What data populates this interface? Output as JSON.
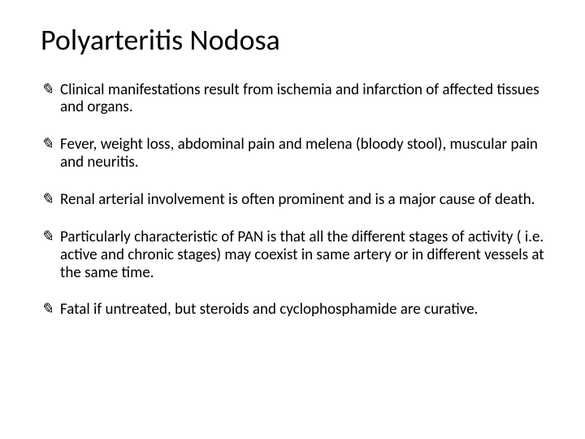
{
  "slide": {
    "title": "Polyarteritis Nodosa",
    "title_fontsize": 36,
    "title_color": "#000000",
    "body_fontsize": 19,
    "body_color": "#000000",
    "background_color": "#ffffff",
    "bullet_glyph": "✎",
    "bullets": [
      "Clinical manifestations result from ischemia and infarction of affected tissues and organs.",
      "Fever, weight loss, abdominal pain and melena (bloody stool), muscular pain and neuritis.",
      "Renal arterial involvement is often prominent and is a major cause of death.",
      "Particularly characteristic of PAN is that all the different stages of activity ( i.e. active and chronic stages) may coexist in  same artery or in different vessels at the same time.",
      "Fatal if untreated, but steroids and cyclophosphamide are curative."
    ]
  }
}
